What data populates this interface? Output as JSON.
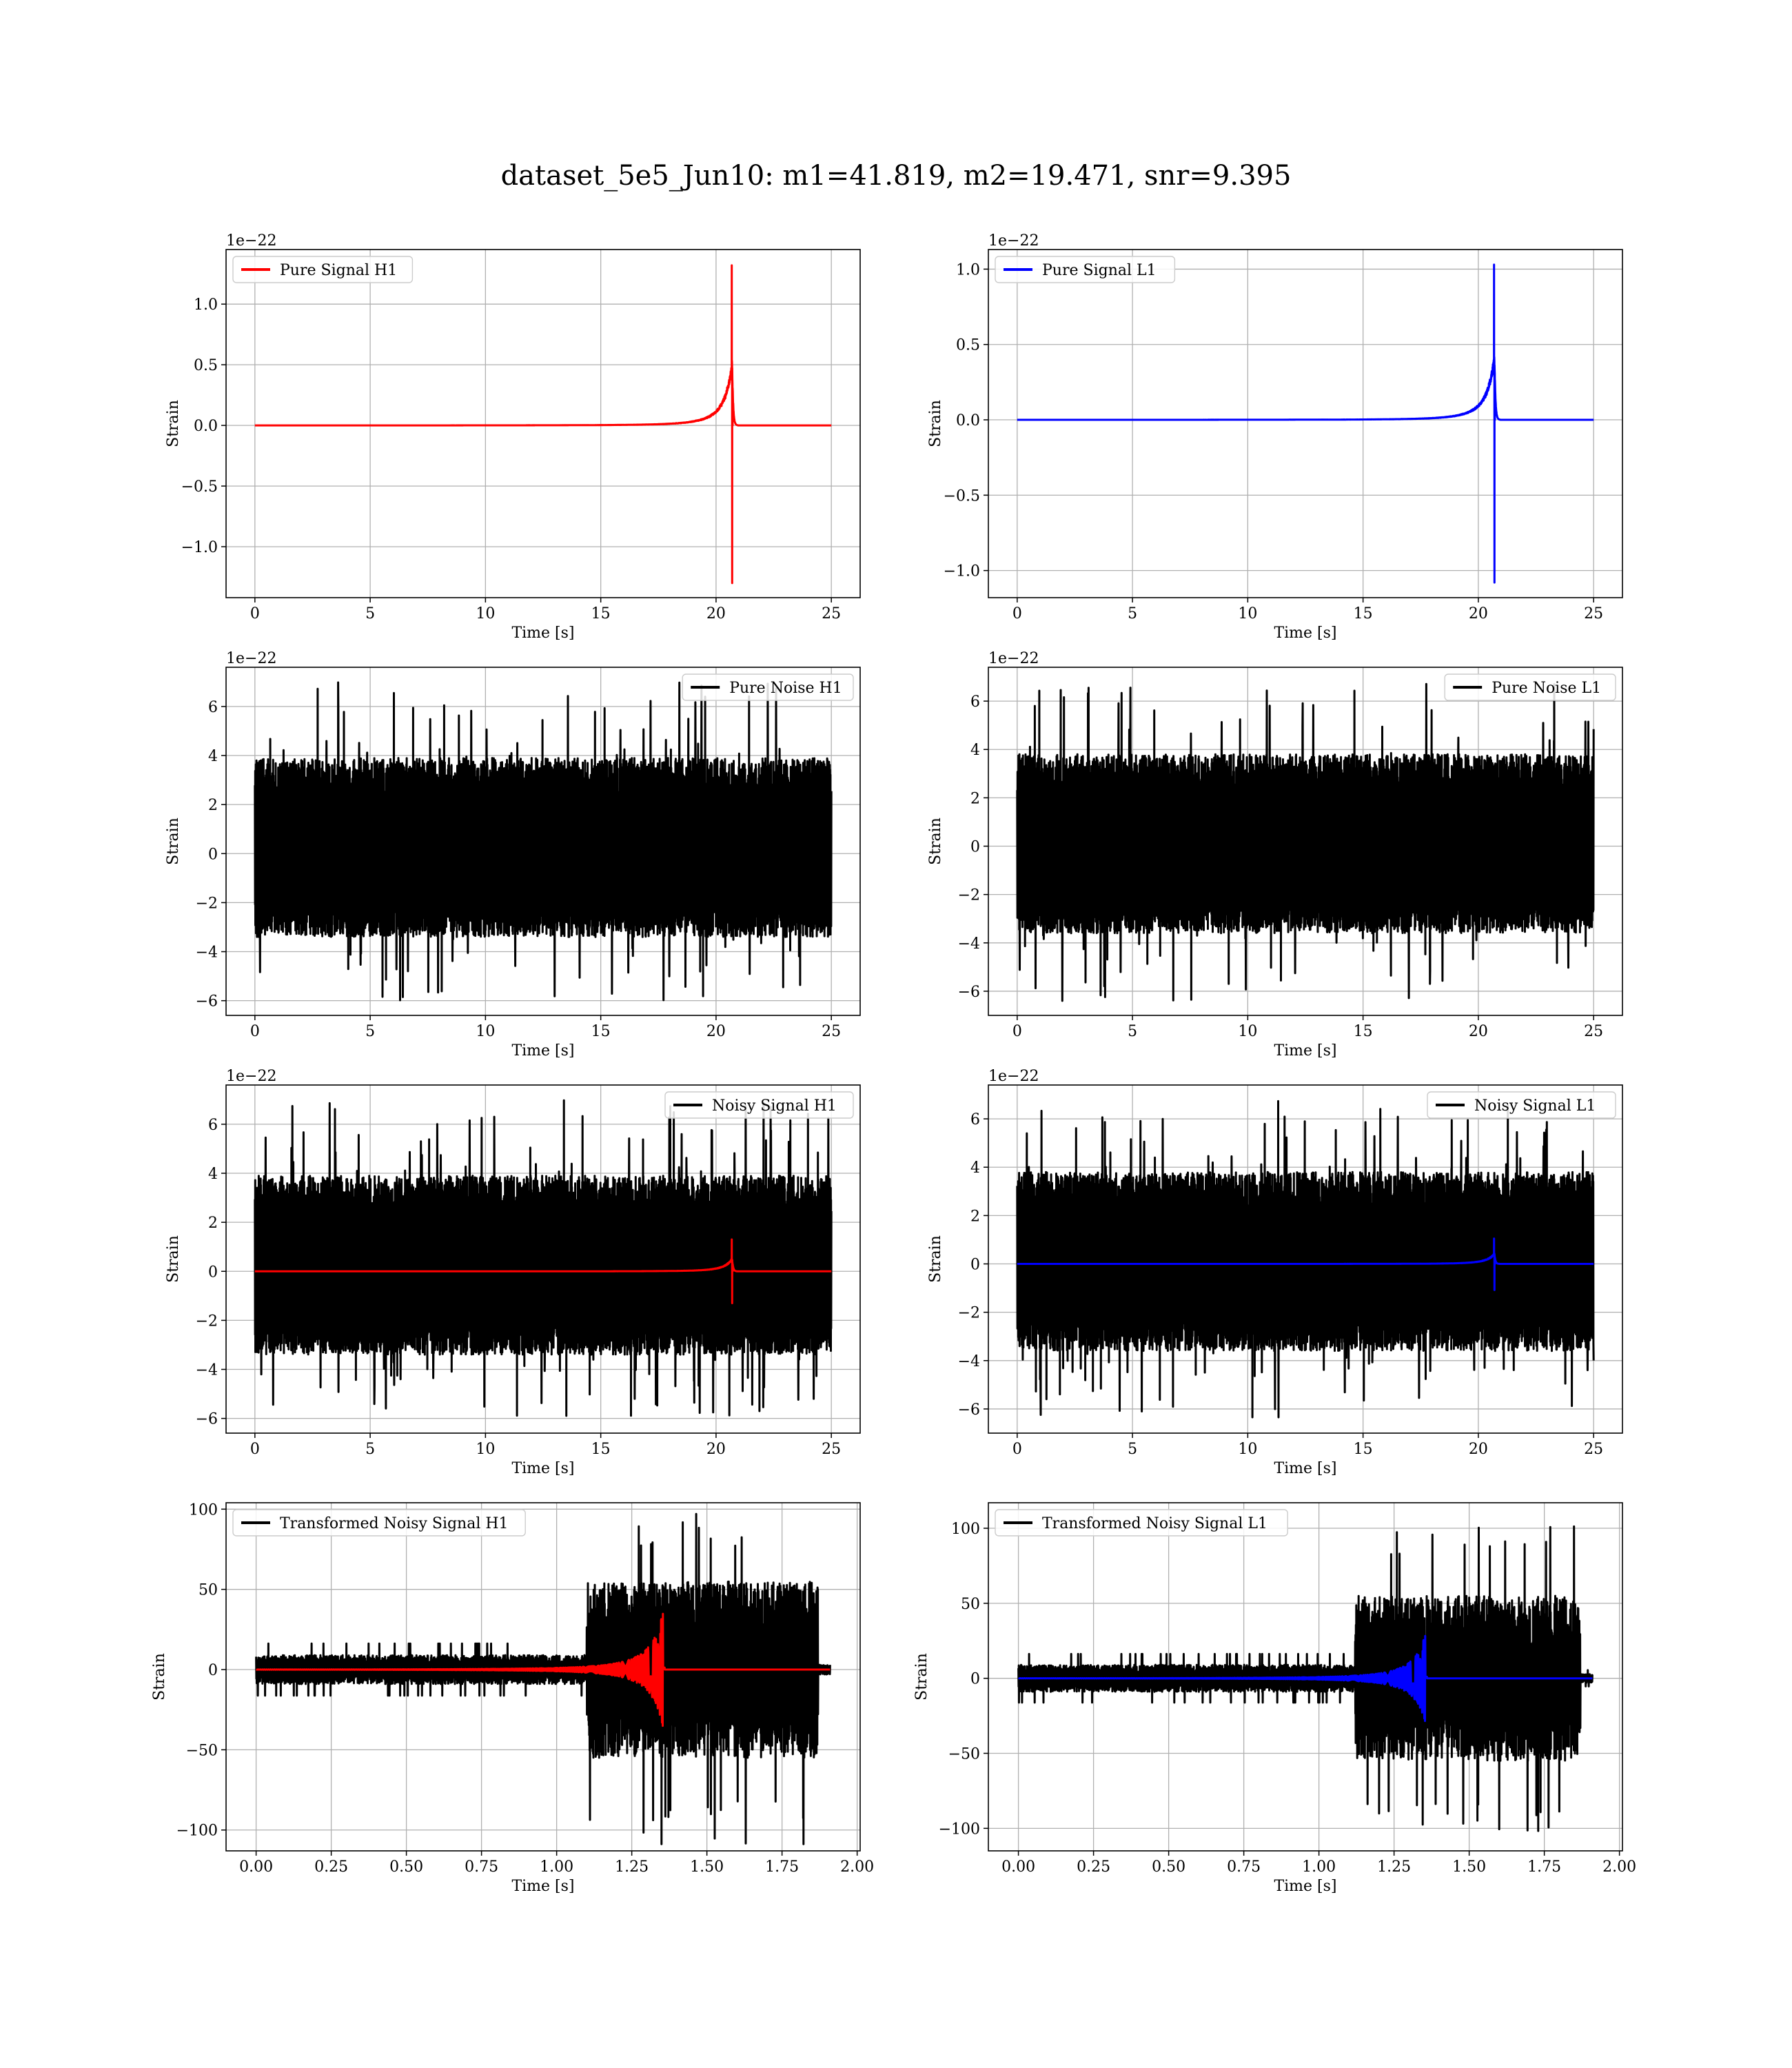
{
  "title": "dataset_5e5_Jun10: m1=41.819, m2=19.471, snr=9.395",
  "colors": {
    "h1_signal": "#ff0000",
    "l1_signal": "#0000ff",
    "noise": "#000000",
    "grid": "#b0b0b0"
  },
  "chart_data": [
    {
      "type": "line",
      "id": "pure-signal-h1",
      "position": "row1-left",
      "xlabel": "Time [s]",
      "ylabel": "Strain",
      "offset_text": "1e−22",
      "xlim": [
        -1.25,
        26.25
      ],
      "ylim": [
        -1.42,
        1.45
      ],
      "xticks": [
        0,
        5,
        10,
        15,
        20,
        25
      ],
      "xtick_labels": [
        "0",
        "5",
        "10",
        "15",
        "20",
        "25"
      ],
      "yticks": [
        -1.0,
        -0.5,
        0.0,
        0.5,
        1.0
      ],
      "ytick_labels": [
        "−1.0",
        "−0.5",
        "0.0",
        "0.5",
        "1.0"
      ],
      "grid": true,
      "legend_placement": "upper-left",
      "series": [
        {
          "name": "Pure Signal H1",
          "color": "#ff0000",
          "kind": "chirp",
          "t_start": 0,
          "t_end": 25,
          "t_merger": 20.7,
          "amplitude_peak_pos": 1.32,
          "amplitude_peak_neg": -1.3,
          "amplitude_envelope": 0.55
        }
      ]
    },
    {
      "type": "line",
      "id": "pure-signal-l1",
      "position": "row1-right",
      "xlabel": "Time [s]",
      "ylabel": "Strain",
      "offset_text": "1e−22",
      "xlim": [
        -1.25,
        26.25
      ],
      "ylim": [
        -1.18,
        1.13
      ],
      "xticks": [
        0,
        5,
        10,
        15,
        20,
        25
      ],
      "xtick_labels": [
        "0",
        "5",
        "10",
        "15",
        "20",
        "25"
      ],
      "yticks": [
        -1.0,
        -0.5,
        0.0,
        0.5,
        1.0
      ],
      "ytick_labels": [
        "−1.0",
        "−0.5",
        "0.0",
        "0.5",
        "1.0"
      ],
      "grid": true,
      "legend_placement": "upper-left",
      "series": [
        {
          "name": "Pure Signal L1",
          "color": "#0000ff",
          "kind": "chirp",
          "t_start": 0,
          "t_end": 25,
          "t_merger": 20.7,
          "amplitude_peak_pos": 1.03,
          "amplitude_peak_neg": -1.08,
          "amplitude_envelope": 0.45
        }
      ]
    },
    {
      "type": "line",
      "id": "pure-noise-h1",
      "position": "row2-left",
      "xlabel": "Time [s]",
      "ylabel": "Strain",
      "offset_text": "1e−22",
      "xlim": [
        -1.25,
        26.25
      ],
      "ylim": [
        -6.6,
        7.6
      ],
      "xticks": [
        0,
        5,
        10,
        15,
        20,
        25
      ],
      "xtick_labels": [
        "0",
        "5",
        "10",
        "15",
        "20",
        "25"
      ],
      "yticks": [
        -6,
        -4,
        -2,
        0,
        2,
        4,
        6
      ],
      "ytick_labels": [
        "−6",
        "−4",
        "−2",
        "0",
        "2",
        "4",
        "6"
      ],
      "grid": true,
      "legend_placement": "upper-right",
      "series": [
        {
          "name": "Pure Noise H1",
          "color": "#000000",
          "kind": "noise",
          "t_start": 0,
          "t_end": 25,
          "band_pos": 3.9,
          "band_neg": -3.4,
          "max": 7.0,
          "min": -6.0
        }
      ]
    },
    {
      "type": "line",
      "id": "pure-noise-l1",
      "position": "row2-right",
      "xlabel": "Time [s]",
      "ylabel": "Strain",
      "offset_text": "1e−22",
      "xlim": [
        -1.25,
        26.25
      ],
      "ylim": [
        -7.0,
        7.4
      ],
      "xticks": [
        0,
        5,
        10,
        15,
        20,
        25
      ],
      "xtick_labels": [
        "0",
        "5",
        "10",
        "15",
        "20",
        "25"
      ],
      "yticks": [
        -6,
        -4,
        -2,
        0,
        2,
        4,
        6
      ],
      "ytick_labels": [
        "−6",
        "−4",
        "−2",
        "0",
        "2",
        "4",
        "6"
      ],
      "grid": true,
      "legend_placement": "upper-right",
      "series": [
        {
          "name": "Pure Noise L1",
          "color": "#000000",
          "kind": "noise",
          "t_start": 0,
          "t_end": 25,
          "band_pos": 3.8,
          "band_neg": -3.6,
          "max": 6.8,
          "min": -6.4
        }
      ]
    },
    {
      "type": "line",
      "id": "noisy-signal-h1",
      "position": "row3-left",
      "xlabel": "Time [s]",
      "ylabel": "Strain",
      "offset_text": "1e−22",
      "xlim": [
        -1.25,
        26.25
      ],
      "ylim": [
        -6.6,
        7.6
      ],
      "xticks": [
        0,
        5,
        10,
        15,
        20,
        25
      ],
      "xtick_labels": [
        "0",
        "5",
        "10",
        "15",
        "20",
        "25"
      ],
      "yticks": [
        -6,
        -4,
        -2,
        0,
        2,
        4,
        6
      ],
      "ytick_labels": [
        "−6",
        "−4",
        "−2",
        "0",
        "2",
        "4",
        "6"
      ],
      "grid": true,
      "legend_placement": "upper-right",
      "series": [
        {
          "name": "Noisy Signal H1",
          "color": "#000000",
          "kind": "noise",
          "t_start": 0,
          "t_end": 25,
          "band_pos": 3.9,
          "band_neg": -3.4,
          "max": 7.0,
          "min": -6.0
        },
        {
          "name": "",
          "color": "#ff0000",
          "kind": "chirp",
          "t_start": 0,
          "t_end": 25,
          "t_merger": 20.7,
          "amplitude_peak_pos": 1.3,
          "amplitude_peak_neg": -1.3,
          "amplitude_envelope": 0.55
        }
      ]
    },
    {
      "type": "line",
      "id": "noisy-signal-l1",
      "position": "row3-right",
      "xlabel": "Time [s]",
      "ylabel": "Strain",
      "offset_text": "1e−22",
      "xlim": [
        -1.25,
        26.25
      ],
      "ylim": [
        -7.0,
        7.4
      ],
      "xticks": [
        0,
        5,
        10,
        15,
        20,
        25
      ],
      "xtick_labels": [
        "0",
        "5",
        "10",
        "15",
        "20",
        "25"
      ],
      "yticks": [
        -6,
        -4,
        -2,
        0,
        2,
        4,
        6
      ],
      "ytick_labels": [
        "−6",
        "−4",
        "−2",
        "0",
        "2",
        "4",
        "6"
      ],
      "grid": true,
      "legend_placement": "upper-right",
      "series": [
        {
          "name": "Noisy Signal L1",
          "color": "#000000",
          "kind": "noise",
          "t_start": 0,
          "t_end": 25,
          "band_pos": 3.8,
          "band_neg": -3.6,
          "max": 6.8,
          "min": -6.4
        },
        {
          "name": "",
          "color": "#0000ff",
          "kind": "chirp",
          "t_start": 0,
          "t_end": 25,
          "t_merger": 20.7,
          "amplitude_peak_pos": 1.05,
          "amplitude_peak_neg": -1.08,
          "amplitude_envelope": 0.45
        }
      ]
    },
    {
      "type": "line",
      "id": "transformed-noisy-signal-h1",
      "position": "row4-left",
      "xlabel": "Time [s]",
      "ylabel": "Strain",
      "offset_text": "",
      "xlim": [
        -0.1,
        2.01
      ],
      "ylim": [
        -113,
        104
      ],
      "xticks": [
        0.0,
        0.25,
        0.5,
        0.75,
        1.0,
        1.25,
        1.5,
        1.75,
        2.0
      ],
      "xtick_labels": [
        "0.00",
        "0.25",
        "0.50",
        "0.75",
        "1.00",
        "1.25",
        "1.50",
        "1.75",
        "2.00"
      ],
      "yticks": [
        -100,
        -50,
        0,
        50,
        100
      ],
      "ytick_labels": [
        "−100",
        "−50",
        "0",
        "50",
        "100"
      ],
      "grid": true,
      "legend_placement": "upper-left",
      "series": [
        {
          "name": "Transformed Noisy Signal H1",
          "color": "#000000",
          "kind": "whitened",
          "t_start": 0,
          "t_end": 1.91,
          "early_band": 9,
          "t_rise": 1.1,
          "late_band": 55,
          "max": 98,
          "min": -109
        },
        {
          "name": "",
          "color": "#ff0000",
          "kind": "whitened-chirp",
          "t_start": 0,
          "t_end": 1.91,
          "t_merger": 1.355,
          "amplitude_peak": 37,
          "amplitude_peak_neg": -35
        }
      ]
    },
    {
      "type": "line",
      "id": "transformed-noisy-signal-l1",
      "position": "row4-right",
      "xlabel": "Time [s]",
      "ylabel": "Strain",
      "offset_text": "",
      "xlim": [
        -0.1,
        2.01
      ],
      "ylim": [
        -115,
        117
      ],
      "xticks": [
        0.0,
        0.25,
        0.5,
        0.75,
        1.0,
        1.25,
        1.5,
        1.75,
        2.0
      ],
      "xtick_labels": [
        "0.00",
        "0.25",
        "0.50",
        "0.75",
        "1.00",
        "1.25",
        "1.50",
        "1.75",
        "2.00"
      ],
      "yticks": [
        -100,
        -50,
        0,
        50,
        100
      ],
      "ytick_labels": [
        "−100",
        "−50",
        "0",
        "50",
        "100"
      ],
      "grid": true,
      "legend_placement": "upper-left",
      "series": [
        {
          "name": "Transformed Noisy Signal L1",
          "color": "#000000",
          "kind": "whitened",
          "t_start": 0,
          "t_end": 1.91,
          "early_band": 9,
          "t_rise": 1.12,
          "late_band": 55,
          "max": 108,
          "min": -104
        },
        {
          "name": "",
          "color": "#0000ff",
          "kind": "whitened-chirp",
          "t_start": 0,
          "t_end": 1.91,
          "t_merger": 1.355,
          "amplitude_peak": 30,
          "amplitude_peak_neg": -30
        }
      ]
    }
  ]
}
